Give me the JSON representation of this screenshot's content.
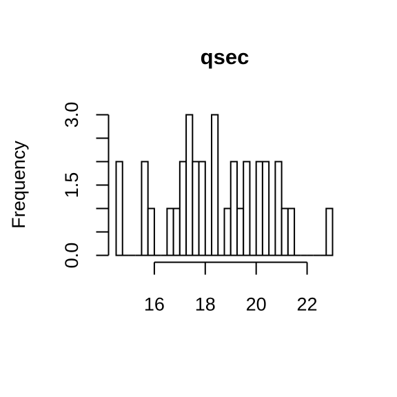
{
  "chart_data": {
    "type": "bar",
    "title": "qsec",
    "xlabel": "",
    "ylabel": "Frequency",
    "bin_width": 0.25,
    "xlim": [
      14.5,
      23.0
    ],
    "ylim": [
      0,
      3
    ],
    "x_ticks": [
      16,
      18,
      20,
      22
    ],
    "x_tick_labels": [
      "16",
      "18",
      "20",
      "22"
    ],
    "y_ticks": [
      0,
      0.5,
      1,
      1.5,
      2,
      2.5,
      3
    ],
    "y_tick_labels": [
      "0.0",
      "1.5",
      "3.0"
    ],
    "y_labeled_ticks": [
      0,
      1.5,
      3
    ],
    "bins": [
      {
        "start": 14.5,
        "end": 14.75,
        "count": 2
      },
      {
        "start": 14.75,
        "end": 15.0,
        "count": 0
      },
      {
        "start": 15.0,
        "end": 15.25,
        "count": 0
      },
      {
        "start": 15.25,
        "end": 15.5,
        "count": 0
      },
      {
        "start": 15.5,
        "end": 15.75,
        "count": 2
      },
      {
        "start": 15.75,
        "end": 16.0,
        "count": 1
      },
      {
        "start": 16.0,
        "end": 16.25,
        "count": 0
      },
      {
        "start": 16.25,
        "end": 16.5,
        "count": 0
      },
      {
        "start": 16.5,
        "end": 16.75,
        "count": 1
      },
      {
        "start": 16.75,
        "end": 17.0,
        "count": 1
      },
      {
        "start": 17.0,
        "end": 17.25,
        "count": 2
      },
      {
        "start": 17.25,
        "end": 17.5,
        "count": 3
      },
      {
        "start": 17.5,
        "end": 17.75,
        "count": 2
      },
      {
        "start": 17.75,
        "end": 18.0,
        "count": 2
      },
      {
        "start": 18.0,
        "end": 18.25,
        "count": 0
      },
      {
        "start": 18.25,
        "end": 18.5,
        "count": 3
      },
      {
        "start": 18.5,
        "end": 18.75,
        "count": 0
      },
      {
        "start": 18.75,
        "end": 19.0,
        "count": 1
      },
      {
        "start": 19.0,
        "end": 19.25,
        "count": 2
      },
      {
        "start": 19.25,
        "end": 19.5,
        "count": 1
      },
      {
        "start": 19.5,
        "end": 19.75,
        "count": 2
      },
      {
        "start": 19.75,
        "end": 20.0,
        "count": 0
      },
      {
        "start": 20.0,
        "end": 20.25,
        "count": 2
      },
      {
        "start": 20.25,
        "end": 20.5,
        "count": 2
      },
      {
        "start": 20.5,
        "end": 20.75,
        "count": 0
      },
      {
        "start": 20.75,
        "end": 21.0,
        "count": 2
      },
      {
        "start": 21.0,
        "end": 21.25,
        "count": 1
      },
      {
        "start": 21.25,
        "end": 21.5,
        "count": 1
      },
      {
        "start": 21.5,
        "end": 21.75,
        "count": 0
      },
      {
        "start": 21.75,
        "end": 22.0,
        "count": 0
      },
      {
        "start": 22.0,
        "end": 22.25,
        "count": 0
      },
      {
        "start": 22.25,
        "end": 22.5,
        "count": 0
      },
      {
        "start": 22.5,
        "end": 22.75,
        "count": 0
      },
      {
        "start": 22.75,
        "end": 23.0,
        "count": 1
      }
    ]
  }
}
